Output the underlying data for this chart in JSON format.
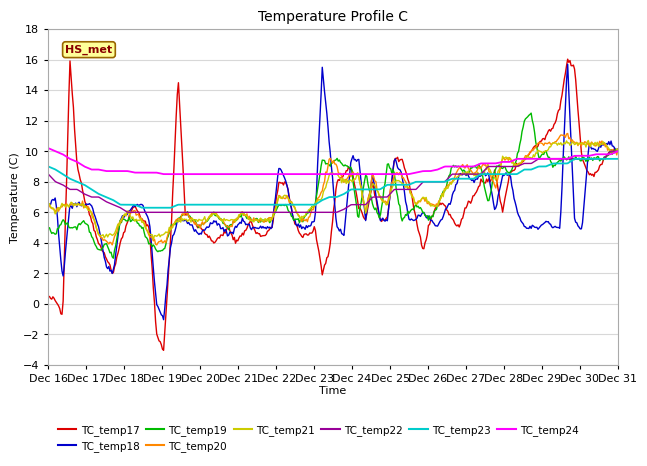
{
  "title": "Temperature Profile C",
  "xlabel": "Time",
  "ylabel": "Temperature (C)",
  "ylim": [
    -4,
    18
  ],
  "yticks": [
    -4,
    -2,
    0,
    2,
    4,
    6,
    8,
    10,
    12,
    14,
    16,
    18
  ],
  "annotation_text": "HS_met",
  "bg_color": "#f0f0f0",
  "plot_bg_color": "#ffffff",
  "series_colors": {
    "TC_temp17": "#dd0000",
    "TC_temp18": "#0000cc",
    "TC_temp19": "#00bb00",
    "TC_temp20": "#ff8800",
    "TC_temp21": "#cccc00",
    "TC_temp22": "#990099",
    "TC_temp23": "#00cccc",
    "TC_temp24": "#ff00ff"
  },
  "x_tick_labels": [
    "Dec 16",
    "Dec 17",
    "Dec 18",
    "Dec 19",
    "Dec 20",
    "Dec 21",
    "Dec 22",
    "Dec 23",
    "Dec 24",
    "Dec 25",
    "Dec 26",
    "Dec 27",
    "Dec 28",
    "Dec 29",
    "Dec 30",
    "Dec 31"
  ],
  "n_points": 500
}
